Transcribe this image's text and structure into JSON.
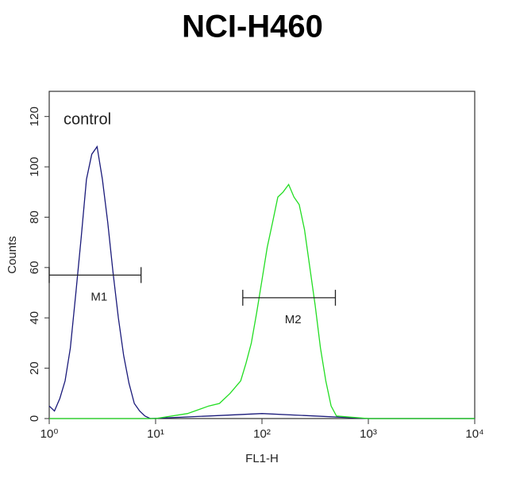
{
  "chart_data": {
    "type": "line",
    "title": "NCI-H460",
    "annotation": "control",
    "x_label": "FL1-H",
    "y_label": "Counts",
    "log_x": true,
    "xlim": [
      1,
      10000
    ],
    "xticks": [
      {
        "value": 1,
        "label": "10⁰"
      },
      {
        "value": 10,
        "label": "10¹"
      },
      {
        "value": 100,
        "label": "10²"
      },
      {
        "value": 1000,
        "label": "10³"
      },
      {
        "value": 10000,
        "label": "10⁴"
      }
    ],
    "ylim": [
      0,
      130
    ],
    "yticks": [
      0,
      20,
      40,
      60,
      80,
      100,
      120
    ],
    "series": [
      {
        "color": "#1a1a7a",
        "x": [
          1,
          1.12,
          1.26,
          1.41,
          1.58,
          1.78,
          2,
          2.24,
          2.51,
          2.82,
          3.16,
          3.55,
          3.98,
          4.47,
          5.01,
          5.62,
          6.31,
          7.08,
          7.94,
          8.91,
          31.6,
          100,
          316,
          1000,
          3160,
          10000
        ],
        "values": [
          5,
          3,
          8,
          15,
          28,
          50,
          72,
          95,
          105,
          108,
          95,
          78,
          58,
          40,
          25,
          14,
          6,
          3,
          1,
          0,
          1,
          2,
          1,
          0,
          0,
          0
        ]
      },
      {
        "color": "#22dd22",
        "x": [
          1,
          10,
          20,
          31.6,
          39.8,
          50.1,
          63.1,
          70.8,
          79.4,
          89.1,
          100,
          112,
          126,
          141,
          158,
          178,
          200,
          224,
          251,
          282,
          316,
          355,
          398,
          447,
          501,
          1000,
          3160,
          10000
        ],
        "values": [
          0,
          0,
          2,
          5,
          6,
          10,
          15,
          22,
          30,
          42,
          55,
          68,
          78,
          88,
          90,
          93,
          88,
          85,
          75,
          60,
          45,
          28,
          15,
          5,
          1,
          0,
          0,
          0
        ]
      }
    ],
    "markers": [
      {
        "label": "M1",
        "x": [
          1,
          7.3
        ],
        "y": 57
      },
      {
        "label": "M2",
        "x": [
          66,
          490
        ],
        "y": 48
      }
    ]
  }
}
